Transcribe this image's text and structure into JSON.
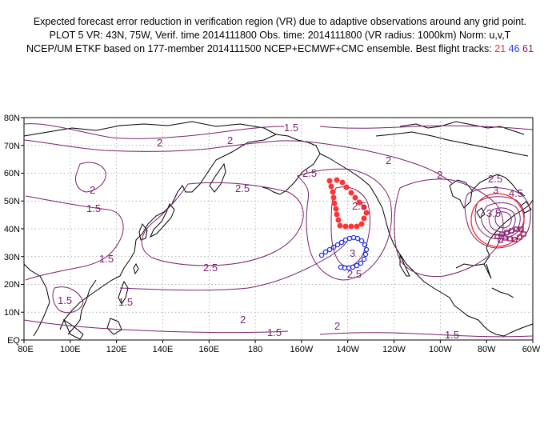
{
  "title": {
    "line1": "Expected forecast error reduction in verification region (VR) due to adaptive observations around any grid point.",
    "line2": "PLOT 5 VR: 43N, 75W, Verif. time 2014111800 Obs. time: 2014111800 (VR radius: 1000km) Norm: u,v,T",
    "line3_prefix": "NCEP/UM ETKF based on 177-member 2014111500 NCEP+ECMWF+CMC ensemble. Best flight tracks:",
    "track_1": "21",
    "track_2": "46",
    "track_3": "61"
  },
  "axes": {
    "y_ticks": [
      "80N",
      "70N",
      "60N",
      "50N",
      "40N",
      "30N",
      "20N",
      "10N",
      "EQ"
    ],
    "x_ticks": [
      "80E",
      "100E",
      "120E",
      "140E",
      "160E",
      "180",
      "160W",
      "140W",
      "120W",
      "100W",
      "80W",
      "60W"
    ]
  },
  "contour_labels": [
    "1.5",
    "2",
    "2.5",
    "2",
    "1.5",
    "2",
    "1.5",
    "1.5",
    "1.5",
    "2.5",
    "2",
    "2.5",
    "2.5",
    "3",
    "2.5",
    "2",
    "1.5",
    "2",
    "1.5",
    "2",
    "2.5",
    "3",
    "3.5",
    "4.5"
  ],
  "colors": {
    "contour": "#7a1f6e",
    "track_21": "#ff3333",
    "track_46": "#2233ee",
    "track_61": "#8b1a6b",
    "verification_circle": "#ff2a2a",
    "coastline": "#000000"
  }
}
